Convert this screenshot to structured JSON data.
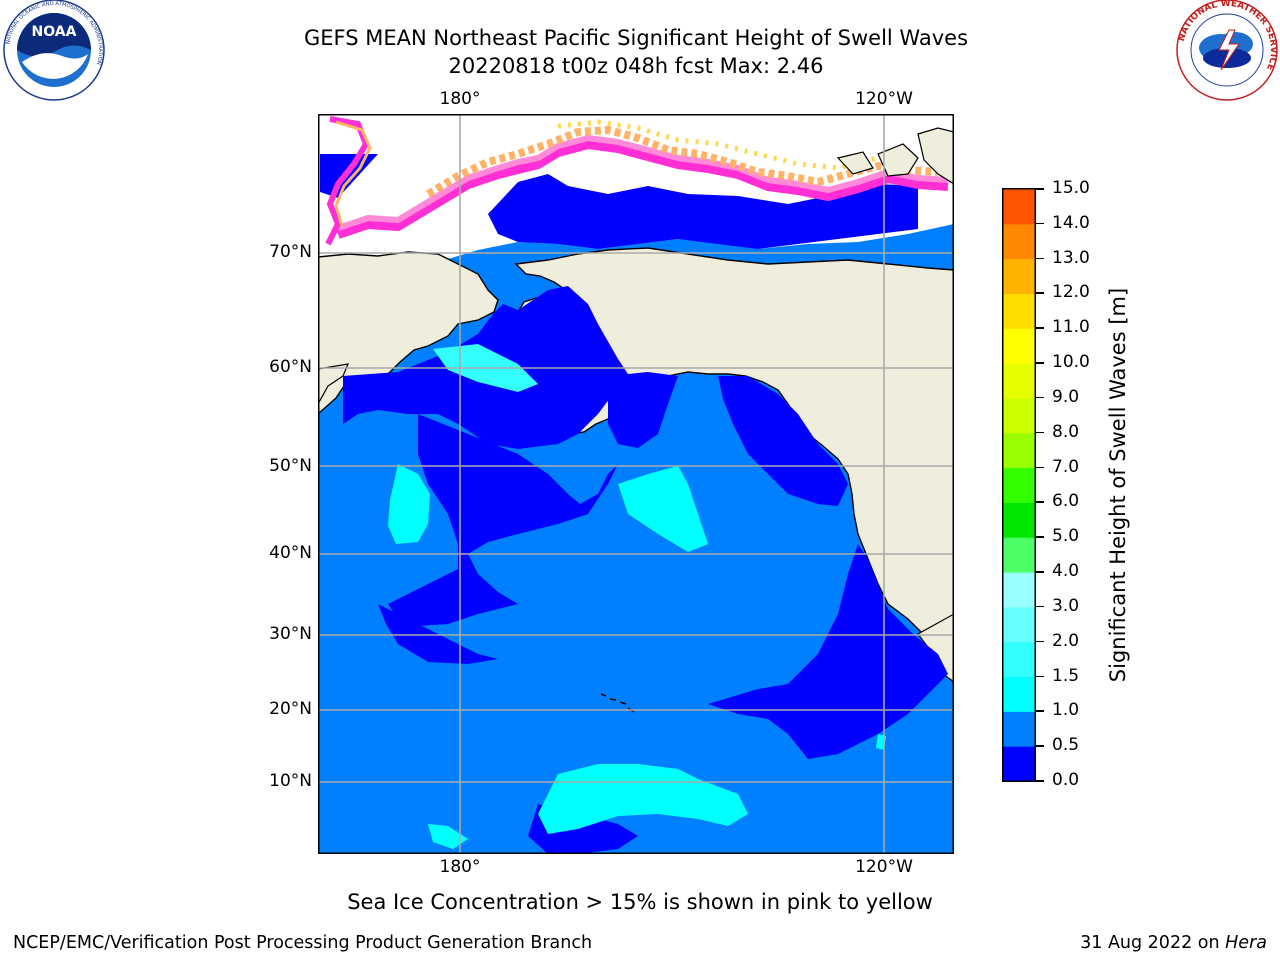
{
  "title": {
    "line1": "GEFS MEAN Northeast Pacific Significant Height of Swell Waves",
    "line2": "20220818 t00z 048h fcst   Max: 2.46"
  },
  "map": {
    "projection": "mercator",
    "lon_ticks": [
      "180°",
      "120°W"
    ],
    "lat_ticks": [
      "70°N",
      "60°N",
      "50°N",
      "40°N",
      "30°N",
      "20°N",
      "10°N"
    ],
    "land_color": "#efeddc",
    "ice_colors": [
      "#ff2fd5",
      "#ff8ad8",
      "#ffb36a",
      "#ffd84e"
    ],
    "max_value": 2.46
  },
  "colorbar": {
    "label": "Significant Height of Swell Waves [m]",
    "ticks": [
      "0.0",
      "0.5",
      "1.0",
      "1.5",
      "2.0",
      "3.0",
      "4.0",
      "5.0",
      "6.0",
      "7.0",
      "8.0",
      "9.0",
      "10.0",
      "11.0",
      "12.0",
      "13.0",
      "14.0",
      "15.0"
    ],
    "colors": [
      "#0000ff",
      "#0080ff",
      "#00ffff",
      "#33ffff",
      "#66ffff",
      "#99ffff",
      "#4dff66",
      "#00e600",
      "#33ff00",
      "#99ff00",
      "#ccff00",
      "#e6ff00",
      "#ffff00",
      "#ffdd00",
      "#ffb300",
      "#ff8800",
      "#ff5500",
      "#ff2200",
      "#ff0000"
    ]
  },
  "footer": {
    "note": "Sea Ice Concentration > 15% is shown in pink to yellow",
    "left": "NCEP/EMC/Verification Post Processing Product Generation Branch",
    "date": "31 Aug 2022 on ",
    "machine": "Hera"
  },
  "logos": {
    "left": "NOAA",
    "left_ring": "NATIONAL OCEANIC AND ATMOSPHERIC ADMINISTRATION",
    "right_ring": "NATIONAL WEATHER SERVICE"
  }
}
